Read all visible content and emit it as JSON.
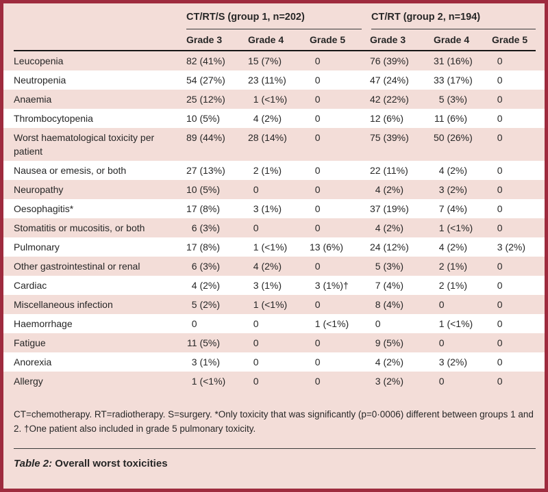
{
  "table": {
    "groups": [
      {
        "label": "CT/RT/S (group 1, n=202)"
      },
      {
        "label": "CT/RT (group 2, n=194)"
      }
    ],
    "grade_headers": [
      "Grade 3",
      "Grade 4",
      "Grade 5",
      "Grade 3",
      "Grade 4",
      "Grade 5"
    ],
    "rows": [
      {
        "label": "Leucopenia",
        "values": [
          "82 (41%)",
          "15 (7%)",
          "0",
          "76 (39%)",
          "31 (16%)",
          "0"
        ]
      },
      {
        "label": "Neutropenia",
        "values": [
          "54 (27%)",
          "23 (11%)",
          "0",
          "47 (24%)",
          "33 (17%)",
          "0"
        ]
      },
      {
        "label": "Anaemia",
        "values": [
          "25 (12%)",
          "1 (<1%)",
          "0",
          "42 (22%)",
          "5 (3%)",
          "0"
        ]
      },
      {
        "label": "Thrombocytopenia",
        "values": [
          "10 (5%)",
          "4 (2%)",
          "0",
          "12 (6%)",
          "11 (6%)",
          "0"
        ]
      },
      {
        "label": "Worst haematological toxicity per patient",
        "values": [
          "89 (44%)",
          "28 (14%)",
          "0",
          "75 (39%)",
          "50 (26%)",
          "0"
        ]
      },
      {
        "label": "Nausea or emesis, or both",
        "values": [
          "27 (13%)",
          "2 (1%)",
          "0",
          "22 (11%)",
          "4 (2%)",
          "0"
        ]
      },
      {
        "label": "Neuropathy",
        "values": [
          "10 (5%)",
          "0",
          "0",
          "4 (2%)",
          "3 (2%)",
          "0"
        ]
      },
      {
        "label": "Oesophagitis*",
        "values": [
          "17 (8%)",
          "3 (1%)",
          "0",
          "37 (19%)",
          "7 (4%)",
          "0"
        ]
      },
      {
        "label": "Stomatitis or mucositis, or both",
        "values": [
          "6 (3%)",
          "0",
          "0",
          "4 (2%)",
          "1 (<1%)",
          "0"
        ]
      },
      {
        "label": "Pulmonary",
        "values": [
          "17 (8%)",
          "1 (<1%)",
          "13 (6%)",
          "24 (12%)",
          "4 (2%)",
          "3 (2%)"
        ]
      },
      {
        "label": "Other gastrointestinal or renal",
        "values": [
          "6 (3%)",
          "4 (2%)",
          "0",
          "5 (3%)",
          "2 (1%)",
          "0"
        ]
      },
      {
        "label": "Cardiac",
        "values": [
          "4 (2%)",
          "3 (1%)",
          "3 (1%)†",
          "7 (4%)",
          "2 (1%)",
          "0"
        ]
      },
      {
        "label": "Miscellaneous infection",
        "values": [
          "5 (2%)",
          "1 (<1%)",
          "0",
          "8 (4%)",
          "0",
          "0"
        ]
      },
      {
        "label": "Haemorrhage",
        "values": [
          "0",
          "0",
          "1 (<1%)",
          "0",
          "1 (<1%)",
          "0"
        ]
      },
      {
        "label": "Fatigue",
        "values": [
          "11 (5%)",
          "0",
          "0",
          "9 (5%)",
          "0",
          "0"
        ]
      },
      {
        "label": "Anorexia",
        "values": [
          "3 (1%)",
          "0",
          "0",
          "4 (2%)",
          "3 (2%)",
          "0"
        ]
      },
      {
        "label": "Allergy",
        "values": [
          "1 (<1%)",
          "0",
          "0",
          "3 (2%)",
          "0",
          "0"
        ]
      }
    ],
    "footnote": "CT=chemotherapy. RT=radiotherapy. S=surgery. *Only toxicity that was significantly (p=0·0006) different between groups 1 and 2. †One patient also included in grade 5 pulmonary toxicity.",
    "caption_label": "Table 2:",
    "caption_text": " Overall worst toxicities"
  },
  "colors": {
    "frame_border": "#9e2b3e",
    "background_pink": "#f3ddd8",
    "row_alt_white": "#ffffff",
    "text": "#262626",
    "rule_dark": "#161616"
  }
}
